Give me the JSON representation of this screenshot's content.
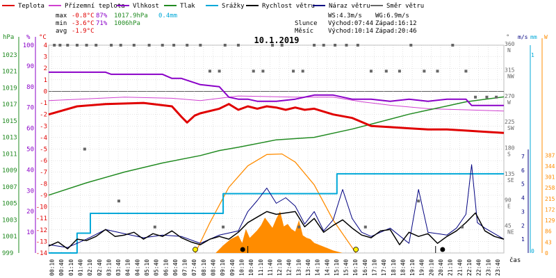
{
  "chart_data": {
    "type": "line",
    "title": "10.1.2019",
    "legend_placement": "top",
    "legend": [
      {
        "label": "Teplota",
        "color": "#e00000"
      },
      {
        "label": "Přízemní teplota",
        "color": "#d040d0"
      },
      {
        "label": "Vlhkost",
        "color": "#8a00c8"
      },
      {
        "label": "Tlak",
        "color": "#228b22"
      },
      {
        "label": "Srážky",
        "color": "#00a8d8"
      },
      {
        "label": "Rychlost větru",
        "color": "#000000"
      },
      {
        "label": "Náraz větru",
        "color": "#000080"
      },
      {
        "label": "Směr větru",
        "color": "#666666"
      }
    ],
    "stats": {
      "max": {
        "label": "max",
        "temp": "-0.8°C",
        "hum": "87%",
        "press": "1017.9hPa",
        "rain": "0.4mm"
      },
      "min": {
        "label": "min",
        "temp": "-3.6°C",
        "hum": "71%",
        "press": "1006hPa"
      },
      "avg": {
        "label": "avg",
        "temp": "-1.9°C"
      }
    },
    "info": {
      "ws": "WS:4.3m/s",
      "wg": "WG:6.9m/s",
      "sun": "Slunce",
      "sunrise": "Východ:07:44",
      "sunset": "Západ:16:12",
      "moon": "Měsíc",
      "moonrise": "Východ:10:14",
      "moonset": "Západ:20:46"
    },
    "axes": {
      "hpa": {
        "unit": "hPa",
        "ticks": [
          999,
          1001,
          1003,
          1005,
          1007,
          1009,
          1011,
          1013,
          1015,
          1017,
          1019,
          1021,
          1023
        ],
        "range": [
          999,
          1025
        ]
      },
      "pct": {
        "unit": "%",
        "ticks": [
          10,
          20,
          30,
          40,
          50,
          60,
          70,
          80,
          90,
          100
        ],
        "range": [
          0,
          100
        ]
      },
      "temp": {
        "unit": "°C",
        "ticks": [
          4,
          3,
          2,
          1,
          0,
          -1,
          -2,
          -3,
          -4,
          -5,
          -6,
          -7,
          -8,
          -9,
          -10,
          -11,
          -12,
          -13,
          -14
        ],
        "range": [
          -14,
          4
        ]
      },
      "dir": {
        "unit": "°",
        "ticks": [
          {
            "v": 360,
            "t": "360",
            "l": "N"
          },
          {
            "v": 315,
            "t": "315",
            "l": "NW"
          },
          {
            "v": 270,
            "t": "270",
            "l": "W"
          },
          {
            "v": 225,
            "t": "225",
            "l": "SW"
          },
          {
            "v": 180,
            "t": "180",
            "l": "S"
          },
          {
            "v": 135,
            "t": "135",
            "l": "SE"
          },
          {
            "v": 90,
            "t": "90",
            "l": "E"
          },
          {
            "v": 45,
            "t": "45",
            "l": "NE"
          }
        ],
        "range": [
          0,
          360
        ]
      },
      "ms": {
        "unit": "m/s",
        "ticks": [
          1,
          2,
          3,
          4,
          5,
          6,
          7
        ],
        "range": [
          0,
          7.5
        ]
      },
      "mm": {
        "unit": "mm",
        "ticks": [
          0,
          1
        ],
        "range": [
          0,
          1.05
        ]
      },
      "w": {
        "unit": "W",
        "ticks": [
          0,
          43,
          86,
          129,
          172,
          215,
          258,
          301,
          344,
          387
        ],
        "range": [
          0,
          410
        ]
      },
      "time": {
        "label": "čas",
        "ticks": [
          "00:10",
          "00:40",
          "01:10",
          "01:40",
          "02:10",
          "02:40",
          "03:10",
          "03:40",
          "04:10",
          "04:40",
          "05:10",
          "05:40",
          "06:10",
          "06:40",
          "07:10",
          "07:40",
          "08:10",
          "08:40",
          "09:10",
          "09:40",
          "10:10",
          "10:40",
          "11:10",
          "11:40",
          "12:10",
          "12:40",
          "13:10",
          "13:40",
          "14:10",
          "14:40",
          "15:10",
          "15:40",
          "16:10",
          "16:40",
          "17:10",
          "17:40",
          "18:10",
          "18:40",
          "19:10",
          "19:40",
          "20:10",
          "20:40",
          "21:10",
          "21:40",
          "22:10",
          "22:40",
          "23:10",
          "23:40"
        ]
      }
    },
    "series": [
      {
        "name": "Teplota",
        "axis": "temp",
        "t": [
          0,
          1.5,
          3,
          5,
          6.5,
          7,
          7.3,
          7.7,
          8,
          9,
          9.5,
          10,
          10.5,
          11,
          11.5,
          12,
          12.5,
          13,
          13.5,
          14,
          15,
          16,
          17,
          18,
          19,
          20,
          21,
          22,
          23,
          24
        ],
        "values": [
          -2.0,
          -1.3,
          -1.1,
          -1.0,
          -1.3,
          -2.2,
          -2.7,
          -2.1,
          -1.9,
          -1.5,
          -1.1,
          -1.6,
          -1.3,
          -1.5,
          -1.3,
          -1.4,
          -1.6,
          -1.4,
          -1.6,
          -1.5,
          -2.0,
          -2.3,
          -3.0,
          -3.1,
          -3.2,
          -3.3,
          -3.3,
          -3.4,
          -3.5,
          -3.6
        ]
      },
      {
        "name": "Přízemní teplota",
        "axis": "temp",
        "t": [
          0,
          4,
          6.5,
          8,
          10,
          13,
          15,
          16.5,
          18,
          20,
          22,
          24
        ],
        "values": [
          -0.8,
          -0.5,
          -0.6,
          -0.8,
          -0.4,
          -0.5,
          -0.5,
          -0.9,
          -1.2,
          -1.5,
          -1.6,
          -1.7
        ]
      },
      {
        "name": "Vlhkost",
        "axis": "pct",
        "t": [
          0,
          3,
          3.3,
          6,
          6.5,
          7,
          8,
          9,
          9.5,
          10,
          10.5,
          11,
          12,
          13,
          14,
          15,
          16,
          17,
          18,
          19,
          20,
          21,
          22,
          22.3,
          23,
          24
        ],
        "values": [
          87,
          87,
          86,
          86,
          84,
          84,
          81,
          80,
          75,
          74,
          74,
          73,
          73,
          74,
          76,
          76,
          74,
          74,
          73,
          74,
          73,
          74,
          74,
          71,
          71,
          71
        ]
      },
      {
        "name": "Tlak",
        "axis": "hpa",
        "t": [
          0,
          2,
          4,
          6,
          8,
          9,
          10,
          12,
          14,
          16,
          17,
          18,
          19,
          20,
          21,
          22,
          23,
          24
        ],
        "values": [
          1006.0,
          1007.5,
          1008.8,
          1009.9,
          1010.8,
          1011.4,
          1011.8,
          1012.7,
          1013.0,
          1014.0,
          1014.6,
          1015.2,
          1015.8,
          1016.3,
          1016.8,
          1017.3,
          1017.6,
          1017.9
        ]
      },
      {
        "name": "Srážky",
        "axis": "mm",
        "t": [
          0,
          1.5,
          1.5,
          2.2,
          2.2,
          9.2,
          9.2,
          15.2,
          15.2,
          24
        ],
        "values": [
          0,
          0,
          0.1,
          0.1,
          0.2,
          0.2,
          0.3,
          0.3,
          0.4,
          0.4
        ]
      },
      {
        "name": "Rychlost větru",
        "axis": "ms",
        "t": [
          0,
          0.5,
          1,
          1.5,
          2,
          2.5,
          3,
          3.5,
          4,
          4.5,
          5,
          5.5,
          6,
          6.5,
          7,
          7.5,
          8,
          8.5,
          9,
          9.5,
          10,
          10.5,
          11,
          11.5,
          12,
          12.5,
          13,
          13.5,
          14,
          14.5,
          15,
          15.5,
          16,
          16.5,
          17,
          17.5,
          18,
          18.5,
          19,
          19.5,
          20,
          20.5,
          21,
          21.5,
          22,
          22.5,
          23,
          23.5,
          24
        ],
        "values": [
          0.5,
          0.8,
          0.3,
          1.0,
          0.9,
          1.2,
          1.7,
          1.2,
          1.3,
          1.5,
          1.0,
          1.4,
          1.2,
          1.6,
          1.1,
          0.8,
          0.6,
          1.0,
          1.2,
          1.0,
          1.5,
          2.2,
          2.6,
          3.0,
          2.8,
          2.9,
          3.0,
          1.9,
          2.5,
          1.5,
          2.0,
          2.4,
          1.8,
          1.3,
          1.1,
          1.6,
          1.7,
          0.6,
          1.5,
          1.2,
          1.4,
          0.7,
          1.2,
          1.6,
          2.2,
          2.9,
          1.6,
          1.2,
          1.0
        ]
      },
      {
        "name": "Náraz větru",
        "axis": "ms",
        "t": [
          0,
          1,
          2,
          3,
          4,
          5,
          6,
          7,
          8,
          9,
          10,
          10.5,
          11,
          11.5,
          12,
          12.5,
          13,
          13.5,
          14,
          14.5,
          15,
          15.5,
          16,
          16.5,
          17,
          18,
          19,
          19.5,
          20,
          21,
          21.5,
          22,
          22.3,
          22.6,
          23,
          24
        ],
        "values": [
          0.6,
          0.4,
          1.0,
          1.7,
          1.4,
          1.1,
          1.3,
          1.2,
          0.7,
          1.3,
          1.6,
          3.0,
          3.8,
          4.7,
          3.6,
          4.0,
          3.4,
          2.1,
          3.0,
          1.6,
          2.4,
          4.6,
          2.5,
          1.5,
          1.2,
          1.8,
          0.7,
          4.6,
          1.5,
          1.3,
          1.8,
          2.8,
          6.4,
          2.2,
          1.8,
          1.0
        ]
      },
      {
        "name": "Směr větru",
        "axis": "dir",
        "t": [
          0.3,
          0.6,
          1,
          1.5,
          2,
          2.5,
          3.3,
          3.8,
          4.5,
          5.3,
          6,
          6.6,
          7.3,
          8,
          8.5,
          9,
          9.3,
          10,
          10.8,
          11.3,
          11.8,
          12.3,
          12.9,
          13.4,
          14,
          14.5,
          15.1,
          15.7,
          16.3,
          17,
          17.8,
          18.5,
          19.1,
          19.8,
          20.5,
          21.3,
          22,
          22.5,
          23.1,
          23.6,
          1.9,
          3.7,
          5.6,
          9.2,
          16.7,
          19.5,
          13.2,
          21.8
        ],
        "values": [
          360,
          360,
          360,
          360,
          360,
          360,
          360,
          360,
          360,
          360,
          360,
          360,
          360,
          360,
          315,
          315,
          360,
          360,
          315,
          315,
          360,
          360,
          315,
          315,
          360,
          360,
          360,
          360,
          360,
          315,
          315,
          315,
          360,
          315,
          315,
          360,
          315,
          270,
          270,
          270,
          180,
          90,
          45,
          45,
          45,
          90,
          45,
          45
        ]
      },
      {
        "name": "Sluneční svit",
        "axis": "w",
        "t": [
          7.73,
          8.5,
          9.5,
          10.5,
          11.5,
          12.3,
          13,
          14,
          15,
          16.2
        ],
        "values": [
          0,
          120,
          260,
          345,
          390,
          392,
          360,
          270,
          130,
          0
        ]
      },
      {
        "name": "Záření",
        "axis": "w",
        "t": [
          8.8,
          9.2,
          9.6,
          10,
          10.2,
          10.4,
          10.6,
          10.8,
          11,
          11.2,
          11.4,
          11.6,
          11.8,
          12,
          12.2,
          12.4,
          12.6,
          12.8,
          13,
          13.2,
          13.4,
          13.6,
          13.8,
          14,
          14.5,
          15,
          15.5
        ],
        "values": [
          0,
          30,
          55,
          70,
          40,
          95,
          60,
          75,
          90,
          110,
          140,
          120,
          100,
          135,
          165,
          105,
          115,
          95,
          85,
          130,
          70,
          60,
          55,
          40,
          25,
          10,
          0
        ]
      }
    ]
  }
}
